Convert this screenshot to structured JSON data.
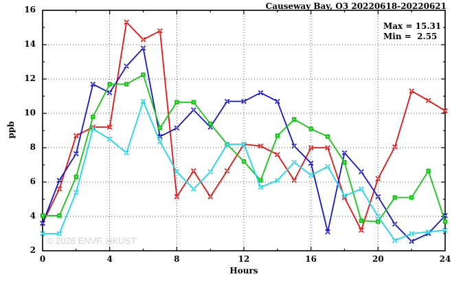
{
  "title": "Causeway Bay, O3 20220618-20220621",
  "stats": {
    "max_label": "Max = 15.31",
    "min_label": "Min =  2.55"
  },
  "watermark": "© 2026 ENVF, HKUST",
  "chart_data": {
    "type": "line",
    "title": "Causeway Bay, O3 20220618-20220621",
    "xlabel": "Hours",
    "ylabel": "ppb",
    "xlim": [
      0,
      24
    ],
    "ylim": [
      2,
      16
    ],
    "x_ticks": [
      0,
      4,
      8,
      12,
      16,
      20,
      24
    ],
    "y_ticks": [
      2,
      4,
      6,
      8,
      10,
      12,
      14,
      16
    ],
    "x_minor_step": 2,
    "y_minor_step": 1,
    "grid": true,
    "legend_position": "none",
    "max": 15.31,
    "min": 2.55,
    "x": [
      0,
      1,
      2,
      3,
      4,
      5,
      6,
      7,
      8,
      9,
      10,
      11,
      12,
      13,
      14,
      15,
      16,
      17,
      18,
      19,
      20,
      21,
      22,
      23,
      24
    ],
    "series": [
      {
        "name": "red-series",
        "color": "#e81212",
        "marker": "x",
        "values": [
          3.6,
          5.6,
          8.7,
          9.2,
          9.2,
          15.31,
          14.3,
          14.8,
          5.15,
          6.65,
          5.15,
          6.65,
          8.2,
          8.1,
          7.6,
          6.1,
          8.0,
          8.0,
          5.1,
          3.2,
          6.2,
          8.05,
          11.3,
          10.75,
          10.15
        ]
      },
      {
        "name": "blue-series",
        "color": "#1414cc",
        "marker": "x",
        "values": [
          3.6,
          6.1,
          7.65,
          11.7,
          11.2,
          12.75,
          13.8,
          8.65,
          9.15,
          10.2,
          9.2,
          10.7,
          10.7,
          11.2,
          10.7,
          8.1,
          7.1,
          3.1,
          7.7,
          6.6,
          5.15,
          3.55,
          2.55,
          3.0,
          4.05
        ]
      },
      {
        "name": "green-series",
        "color": "#14c614",
        "marker": "square",
        "values": [
          4.05,
          4.05,
          6.3,
          9.8,
          11.7,
          11.7,
          12.25,
          9.15,
          10.65,
          10.65,
          9.4,
          8.2,
          7.2,
          6.1,
          8.7,
          9.65,
          9.1,
          8.65,
          7.15,
          3.75,
          3.7,
          5.1,
          5.1,
          6.65,
          3.7
        ]
      },
      {
        "name": "cyan-series",
        "color": "#1cd8e6",
        "marker": "x",
        "values": [
          3.0,
          3.0,
          5.4,
          9.1,
          8.5,
          7.7,
          10.7,
          8.35,
          6.6,
          5.6,
          6.6,
          8.2,
          8.2,
          5.7,
          6.1,
          7.15,
          6.4,
          6.9,
          5.2,
          5.6,
          4.0,
          2.6,
          3.0,
          3.1,
          3.2
        ]
      }
    ]
  }
}
